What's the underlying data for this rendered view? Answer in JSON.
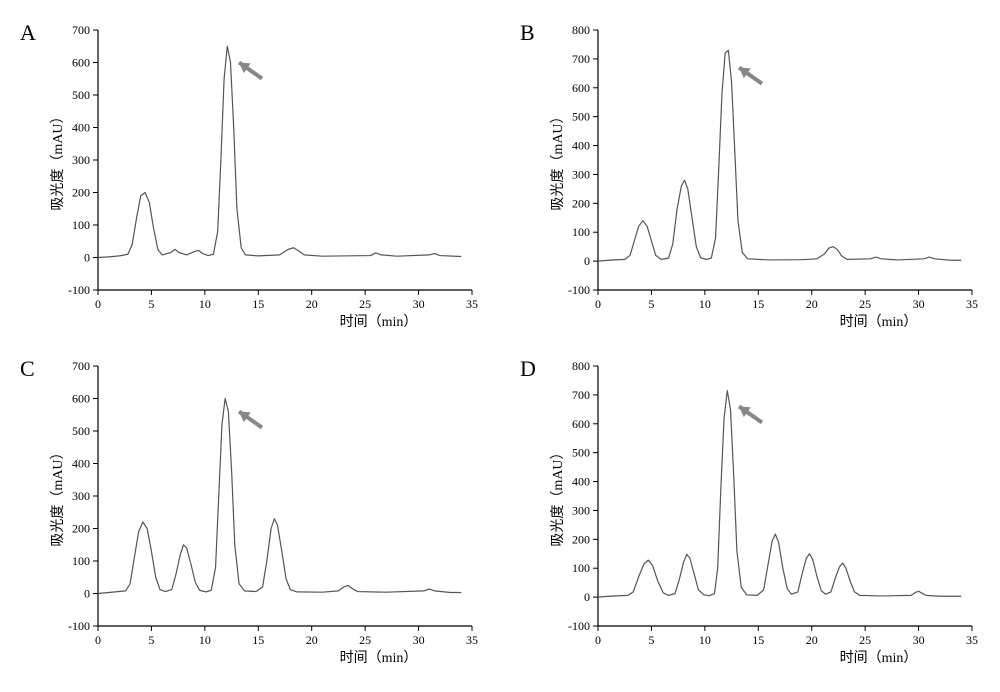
{
  "layout": {
    "cols": 2,
    "rows": 2,
    "gap_x": 40,
    "gap_y": 20,
    "total_width": 960,
    "total_height": 652
  },
  "common": {
    "xlabel": "时间（min）",
    "ylabel": "吸光度（mAU）",
    "label_fontsize": 14,
    "tick_fontsize": 12,
    "panel_label_fontsize": 22,
    "line_color": "#555555",
    "line_width": 1.2,
    "axis_color": "#000000",
    "tick_color": "#000000",
    "background_color": "#ffffff",
    "arrow_color": "#888888",
    "arrow_head_size": 10,
    "arrow_len": 28,
    "xlim": [
      0,
      35
    ],
    "xtick_step": 5
  },
  "panels": [
    {
      "id": "A",
      "ylim": [
        -100,
        700
      ],
      "ytick_step": 100,
      "arrow": {
        "tip_x": 13.2,
        "tip_y": 600,
        "angle_deg": 215
      },
      "series": [
        {
          "x": 0,
          "y": 0
        },
        {
          "x": 1,
          "y": 2
        },
        {
          "x": 2,
          "y": 5
        },
        {
          "x": 2.8,
          "y": 10
        },
        {
          "x": 3.2,
          "y": 40
        },
        {
          "x": 3.6,
          "y": 120
        },
        {
          "x": 4.0,
          "y": 190
        },
        {
          "x": 4.4,
          "y": 200
        },
        {
          "x": 4.8,
          "y": 170
        },
        {
          "x": 5.2,
          "y": 90
        },
        {
          "x": 5.6,
          "y": 25
        },
        {
          "x": 6.0,
          "y": 8
        },
        {
          "x": 6.8,
          "y": 15
        },
        {
          "x": 7.2,
          "y": 25
        },
        {
          "x": 7.6,
          "y": 15
        },
        {
          "x": 8.3,
          "y": 8
        },
        {
          "x": 9.0,
          "y": 18
        },
        {
          "x": 9.4,
          "y": 22
        },
        {
          "x": 9.8,
          "y": 12
        },
        {
          "x": 10.3,
          "y": 6
        },
        {
          "x": 10.8,
          "y": 10
        },
        {
          "x": 11.2,
          "y": 80
        },
        {
          "x": 11.5,
          "y": 300
        },
        {
          "x": 11.8,
          "y": 550
        },
        {
          "x": 12.1,
          "y": 650
        },
        {
          "x": 12.4,
          "y": 600
        },
        {
          "x": 12.7,
          "y": 400
        },
        {
          "x": 13.0,
          "y": 150
        },
        {
          "x": 13.4,
          "y": 30
        },
        {
          "x": 13.8,
          "y": 8
        },
        {
          "x": 15.0,
          "y": 5
        },
        {
          "x": 17.0,
          "y": 8
        },
        {
          "x": 17.8,
          "y": 25
        },
        {
          "x": 18.3,
          "y": 30
        },
        {
          "x": 18.8,
          "y": 20
        },
        {
          "x": 19.3,
          "y": 8
        },
        {
          "x": 21,
          "y": 4
        },
        {
          "x": 25.5,
          "y": 6
        },
        {
          "x": 26,
          "y": 14
        },
        {
          "x": 26.5,
          "y": 8
        },
        {
          "x": 28,
          "y": 4
        },
        {
          "x": 31,
          "y": 8
        },
        {
          "x": 31.5,
          "y": 12
        },
        {
          "x": 32,
          "y": 6
        },
        {
          "x": 34,
          "y": 3
        }
      ]
    },
    {
      "id": "B",
      "ylim": [
        -100,
        800
      ],
      "ytick_step": 100,
      "arrow": {
        "tip_x": 13.2,
        "tip_y": 670,
        "angle_deg": 215
      },
      "series": [
        {
          "x": 0,
          "y": 0
        },
        {
          "x": 1,
          "y": 3
        },
        {
          "x": 2.5,
          "y": 6
        },
        {
          "x": 3.0,
          "y": 20
        },
        {
          "x": 3.4,
          "y": 70
        },
        {
          "x": 3.8,
          "y": 120
        },
        {
          "x": 4.2,
          "y": 140
        },
        {
          "x": 4.6,
          "y": 120
        },
        {
          "x": 5.0,
          "y": 70
        },
        {
          "x": 5.4,
          "y": 20
        },
        {
          "x": 5.9,
          "y": 6
        },
        {
          "x": 6.6,
          "y": 10
        },
        {
          "x": 7.0,
          "y": 60
        },
        {
          "x": 7.4,
          "y": 180
        },
        {
          "x": 7.8,
          "y": 260
        },
        {
          "x": 8.1,
          "y": 280
        },
        {
          "x": 8.4,
          "y": 250
        },
        {
          "x": 8.8,
          "y": 150
        },
        {
          "x": 9.2,
          "y": 50
        },
        {
          "x": 9.6,
          "y": 12
        },
        {
          "x": 10.1,
          "y": 6
        },
        {
          "x": 10.6,
          "y": 10
        },
        {
          "x": 11.0,
          "y": 80
        },
        {
          "x": 11.3,
          "y": 320
        },
        {
          "x": 11.6,
          "y": 580
        },
        {
          "x": 11.9,
          "y": 720
        },
        {
          "x": 12.2,
          "y": 730
        },
        {
          "x": 12.5,
          "y": 620
        },
        {
          "x": 12.8,
          "y": 380
        },
        {
          "x": 13.1,
          "y": 140
        },
        {
          "x": 13.5,
          "y": 30
        },
        {
          "x": 14.0,
          "y": 8
        },
        {
          "x": 16,
          "y": 4
        },
        {
          "x": 19,
          "y": 5
        },
        {
          "x": 20.5,
          "y": 8
        },
        {
          "x": 21.2,
          "y": 25
        },
        {
          "x": 21.6,
          "y": 45
        },
        {
          "x": 22.0,
          "y": 50
        },
        {
          "x": 22.4,
          "y": 40
        },
        {
          "x": 22.8,
          "y": 18
        },
        {
          "x": 23.3,
          "y": 6
        },
        {
          "x": 25.5,
          "y": 8
        },
        {
          "x": 26.0,
          "y": 14
        },
        {
          "x": 26.5,
          "y": 8
        },
        {
          "x": 28,
          "y": 4
        },
        {
          "x": 30.5,
          "y": 8
        },
        {
          "x": 31.0,
          "y": 14
        },
        {
          "x": 31.5,
          "y": 8
        },
        {
          "x": 33,
          "y": 3
        },
        {
          "x": 34,
          "y": 3
        }
      ]
    },
    {
      "id": "C",
      "ylim": [
        -100,
        700
      ],
      "ytick_step": 100,
      "arrow": {
        "tip_x": 13.2,
        "tip_y": 560,
        "angle_deg": 215
      },
      "series": [
        {
          "x": 0,
          "y": 0
        },
        {
          "x": 1,
          "y": 3
        },
        {
          "x": 2.6,
          "y": 8
        },
        {
          "x": 3.0,
          "y": 30
        },
        {
          "x": 3.4,
          "y": 110
        },
        {
          "x": 3.8,
          "y": 190
        },
        {
          "x": 4.2,
          "y": 220
        },
        {
          "x": 4.6,
          "y": 200
        },
        {
          "x": 5.0,
          "y": 130
        },
        {
          "x": 5.4,
          "y": 50
        },
        {
          "x": 5.8,
          "y": 12
        },
        {
          "x": 6.3,
          "y": 6
        },
        {
          "x": 6.9,
          "y": 12
        },
        {
          "x": 7.3,
          "y": 60
        },
        {
          "x": 7.7,
          "y": 120
        },
        {
          "x": 8.0,
          "y": 150
        },
        {
          "x": 8.3,
          "y": 140
        },
        {
          "x": 8.7,
          "y": 90
        },
        {
          "x": 9.1,
          "y": 35
        },
        {
          "x": 9.5,
          "y": 10
        },
        {
          "x": 10.1,
          "y": 5
        },
        {
          "x": 10.6,
          "y": 10
        },
        {
          "x": 11.0,
          "y": 80
        },
        {
          "x": 11.3,
          "y": 300
        },
        {
          "x": 11.6,
          "y": 520
        },
        {
          "x": 11.9,
          "y": 600
        },
        {
          "x": 12.2,
          "y": 560
        },
        {
          "x": 12.5,
          "y": 380
        },
        {
          "x": 12.8,
          "y": 150
        },
        {
          "x": 13.2,
          "y": 30
        },
        {
          "x": 13.7,
          "y": 8
        },
        {
          "x": 14.8,
          "y": 6
        },
        {
          "x": 15.4,
          "y": 20
        },
        {
          "x": 15.8,
          "y": 100
        },
        {
          "x": 16.2,
          "y": 200
        },
        {
          "x": 16.5,
          "y": 230
        },
        {
          "x": 16.8,
          "y": 210
        },
        {
          "x": 17.2,
          "y": 130
        },
        {
          "x": 17.6,
          "y": 45
        },
        {
          "x": 18.0,
          "y": 12
        },
        {
          "x": 18.6,
          "y": 5
        },
        {
          "x": 21,
          "y": 4
        },
        {
          "x": 22.5,
          "y": 8
        },
        {
          "x": 23.0,
          "y": 20
        },
        {
          "x": 23.4,
          "y": 25
        },
        {
          "x": 23.8,
          "y": 15
        },
        {
          "x": 24.3,
          "y": 6
        },
        {
          "x": 27,
          "y": 4
        },
        {
          "x": 30.5,
          "y": 8
        },
        {
          "x": 31.0,
          "y": 14
        },
        {
          "x": 31.5,
          "y": 8
        },
        {
          "x": 33,
          "y": 3
        },
        {
          "x": 34,
          "y": 3
        }
      ]
    },
    {
      "id": "D",
      "ylim": [
        -100,
        800
      ],
      "ytick_step": 100,
      "arrow": {
        "tip_x": 13.2,
        "tip_y": 660,
        "angle_deg": 215
      },
      "series": [
        {
          "x": 0,
          "y": 0
        },
        {
          "x": 1,
          "y": 3
        },
        {
          "x": 2.8,
          "y": 6
        },
        {
          "x": 3.3,
          "y": 18
        },
        {
          "x": 3.8,
          "y": 70
        },
        {
          "x": 4.3,
          "y": 115
        },
        {
          "x": 4.7,
          "y": 128
        },
        {
          "x": 5.1,
          "y": 110
        },
        {
          "x": 5.6,
          "y": 55
        },
        {
          "x": 6.1,
          "y": 15
        },
        {
          "x": 6.6,
          "y": 6
        },
        {
          "x": 7.2,
          "y": 12
        },
        {
          "x": 7.6,
          "y": 60
        },
        {
          "x": 8.0,
          "y": 120
        },
        {
          "x": 8.3,
          "y": 148
        },
        {
          "x": 8.6,
          "y": 135
        },
        {
          "x": 9.0,
          "y": 80
        },
        {
          "x": 9.4,
          "y": 25
        },
        {
          "x": 9.9,
          "y": 8
        },
        {
          "x": 10.4,
          "y": 5
        },
        {
          "x": 10.9,
          "y": 12
        },
        {
          "x": 11.2,
          "y": 100
        },
        {
          "x": 11.5,
          "y": 380
        },
        {
          "x": 11.8,
          "y": 620
        },
        {
          "x": 12.1,
          "y": 715
        },
        {
          "x": 12.4,
          "y": 650
        },
        {
          "x": 12.7,
          "y": 420
        },
        {
          "x": 13.0,
          "y": 160
        },
        {
          "x": 13.4,
          "y": 35
        },
        {
          "x": 13.9,
          "y": 8
        },
        {
          "x": 14.9,
          "y": 6
        },
        {
          "x": 15.5,
          "y": 25
        },
        {
          "x": 15.9,
          "y": 110
        },
        {
          "x": 16.3,
          "y": 195
        },
        {
          "x": 16.6,
          "y": 218
        },
        {
          "x": 16.9,
          "y": 190
        },
        {
          "x": 17.3,
          "y": 100
        },
        {
          "x": 17.7,
          "y": 30
        },
        {
          "x": 18.1,
          "y": 10
        },
        {
          "x": 18.7,
          "y": 18
        },
        {
          "x": 19.1,
          "y": 80
        },
        {
          "x": 19.5,
          "y": 135
        },
        {
          "x": 19.8,
          "y": 150
        },
        {
          "x": 20.1,
          "y": 130
        },
        {
          "x": 20.5,
          "y": 70
        },
        {
          "x": 20.9,
          "y": 22
        },
        {
          "x": 21.3,
          "y": 10
        },
        {
          "x": 21.8,
          "y": 18
        },
        {
          "x": 22.2,
          "y": 65
        },
        {
          "x": 22.6,
          "y": 105
        },
        {
          "x": 22.9,
          "y": 118
        },
        {
          "x": 23.2,
          "y": 100
        },
        {
          "x": 23.6,
          "y": 55
        },
        {
          "x": 24.0,
          "y": 18
        },
        {
          "x": 24.5,
          "y": 6
        },
        {
          "x": 26.5,
          "y": 4
        },
        {
          "x": 29.3,
          "y": 6
        },
        {
          "x": 29.7,
          "y": 16
        },
        {
          "x": 30.0,
          "y": 20
        },
        {
          "x": 30.3,
          "y": 14
        },
        {
          "x": 30.7,
          "y": 6
        },
        {
          "x": 32,
          "y": 3
        },
        {
          "x": 34,
          "y": 3
        }
      ]
    }
  ]
}
